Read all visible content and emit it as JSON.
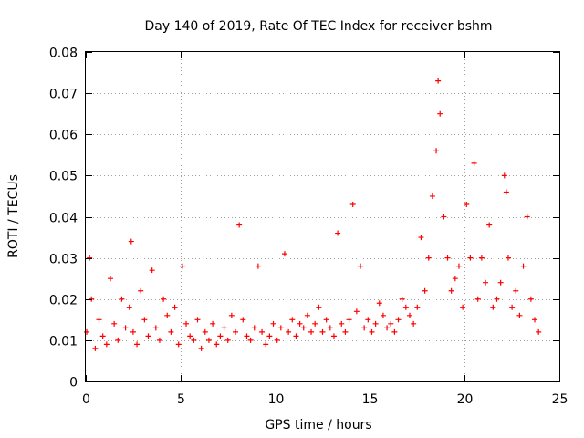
{
  "chart_data": {
    "type": "scatter",
    "title": "Day 140 of 2019, Rate Of TEC Index for receiver bshm",
    "xlabel": "GPS time / hours",
    "ylabel": "ROTI / TECUs",
    "xlim": [
      0,
      25
    ],
    "ylim": [
      0,
      0.08
    ],
    "xticks": [
      "0",
      "5",
      "10",
      "15",
      "20",
      "25"
    ],
    "xtick_values": [
      0,
      5,
      10,
      15,
      20,
      25
    ],
    "yticks": [
      "0",
      "0.01",
      "0.02",
      "0.03",
      "0.04",
      "0.05",
      "0.06",
      "0.07",
      "0.08"
    ],
    "ytick_values": [
      0,
      0.01,
      0.02,
      0.03,
      0.04,
      0.05,
      0.06,
      0.07,
      0.08
    ],
    "grid": true,
    "marker": "+",
    "marker_color": "#ff0000",
    "series": [
      {
        "name": "ROTI",
        "x": [
          0.05,
          0.2,
          0.3,
          0.5,
          0.7,
          0.9,
          1.1,
          1.3,
          1.5,
          1.7,
          1.9,
          2.1,
          2.3,
          2.4,
          2.5,
          2.7,
          2.9,
          3.1,
          3.3,
          3.5,
          3.7,
          3.9,
          4.1,
          4.3,
          4.5,
          4.7,
          4.9,
          5.1,
          5.3,
          5.5,
          5.7,
          5.9,
          6.1,
          6.3,
          6.5,
          6.7,
          6.9,
          7.1,
          7.3,
          7.5,
          7.7,
          7.9,
          8.1,
          8.3,
          8.5,
          8.7,
          8.9,
          9.1,
          9.3,
          9.5,
          9.7,
          9.9,
          10.1,
          10.3,
          10.5,
          10.7,
          10.9,
          11.1,
          11.3,
          11.5,
          11.7,
          11.9,
          12.1,
          12.3,
          12.5,
          12.7,
          12.9,
          13.1,
          13.3,
          13.5,
          13.7,
          13.9,
          14.1,
          14.3,
          14.5,
          14.7,
          14.9,
          15.1,
          15.3,
          15.5,
          15.7,
          15.9,
          16.1,
          16.3,
          16.5,
          16.7,
          16.9,
          17.1,
          17.3,
          17.5,
          17.7,
          17.9,
          18.1,
          18.3,
          18.5,
          18.6,
          18.7,
          18.9,
          19.1,
          19.3,
          19.5,
          19.7,
          19.9,
          20.1,
          20.3,
          20.5,
          20.7,
          20.9,
          21.1,
          21.3,
          21.5,
          21.7,
          21.9,
          22.1,
          22.2,
          22.3,
          22.5,
          22.7,
          22.9,
          23.1,
          23.3,
          23.5,
          23.7,
          23.9
        ],
        "y": [
          0.012,
          0.03,
          0.02,
          0.008,
          0.015,
          0.011,
          0.009,
          0.025,
          0.014,
          0.01,
          0.02,
          0.013,
          0.018,
          0.034,
          0.012,
          0.009,
          0.022,
          0.015,
          0.011,
          0.027,
          0.013,
          0.01,
          0.02,
          0.016,
          0.012,
          0.018,
          0.009,
          0.028,
          0.014,
          0.011,
          0.01,
          0.015,
          0.008,
          0.012,
          0.01,
          0.014,
          0.009,
          0.011,
          0.013,
          0.01,
          0.016,
          0.012,
          0.038,
          0.015,
          0.011,
          0.01,
          0.013,
          0.028,
          0.012,
          0.009,
          0.011,
          0.014,
          0.01,
          0.013,
          0.031,
          0.012,
          0.015,
          0.011,
          0.014,
          0.013,
          0.016,
          0.012,
          0.014,
          0.018,
          0.012,
          0.015,
          0.013,
          0.011,
          0.036,
          0.014,
          0.012,
          0.015,
          0.043,
          0.017,
          0.028,
          0.013,
          0.015,
          0.012,
          0.014,
          0.019,
          0.016,
          0.013,
          0.014,
          0.012,
          0.015,
          0.02,
          0.018,
          0.016,
          0.014,
          0.018,
          0.035,
          0.022,
          0.03,
          0.045,
          0.056,
          0.073,
          0.065,
          0.04,
          0.03,
          0.022,
          0.025,
          0.028,
          0.018,
          0.043,
          0.03,
          0.053,
          0.02,
          0.03,
          0.024,
          0.038,
          0.018,
          0.02,
          0.024,
          0.05,
          0.046,
          0.03,
          0.018,
          0.022,
          0.016,
          0.028,
          0.04,
          0.02,
          0.015,
          0.012
        ]
      }
    ]
  }
}
